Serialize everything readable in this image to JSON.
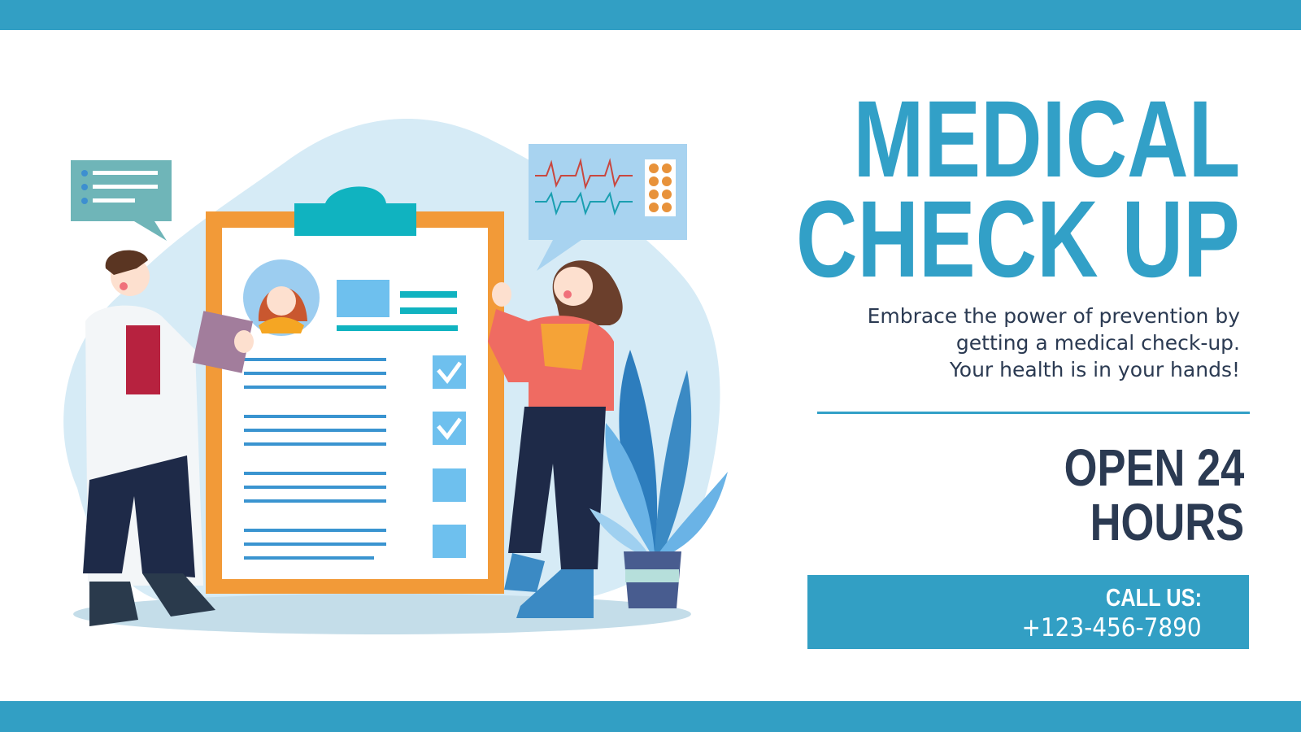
{
  "title": {
    "line1": "MEDICAL",
    "line2": "CHECK UP"
  },
  "description": [
    "Embrace the power of prevention by",
    "getting a medical check-up.",
    "Your health is in your hands!"
  ],
  "hours": {
    "line1": "OPEN 24",
    "line2": "HOURS"
  },
  "contact": {
    "label": "CALL US:",
    "phone": "+123-456-7890"
  },
  "colors": {
    "accent": "#329fc4",
    "title": "#32a0c7",
    "dark_text": "#2b3a52",
    "clipboard_frame": "#f29a38",
    "clip": "#10b3c0"
  },
  "illustration": {
    "icons": [
      "doctor-figure",
      "patient-figure",
      "clipboard-checklist",
      "chat-bubble-icon",
      "heartbeat-monitor-icon",
      "plant-icon"
    ],
    "checklist_checked": [
      true,
      true,
      false,
      false
    ]
  }
}
